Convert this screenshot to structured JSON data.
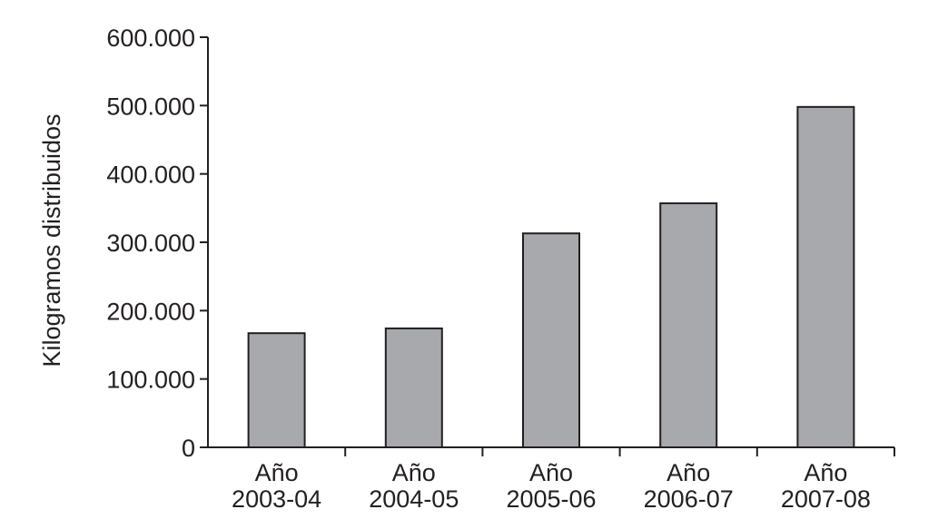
{
  "chart_data": {
    "type": "bar",
    "y_label": "Kilogramos distribuidos",
    "categories": [
      "Año 2003-04",
      "Año 2004-05",
      "Año 2005-06",
      "Año 2006-07",
      "Año 2007-08"
    ],
    "values": [
      167000,
      174000,
      313000,
      357000,
      498000
    ],
    "color": "#a7a9ac",
    "ylim": [
      0,
      600000
    ],
    "yticks": [
      0,
      {
        "value": 100000,
        "label": "100.000"
      },
      {
        "value": 200000,
        "label": "200.000"
      },
      {
        "value": 300000,
        "label": "300.000"
      },
      {
        "value": 400000,
        "label": "400.000"
      },
      {
        "value": 500000,
        "label": "500.000"
      },
      {
        "value": 600000,
        "label": "600.000"
      }
    ],
    "grid": false
  }
}
